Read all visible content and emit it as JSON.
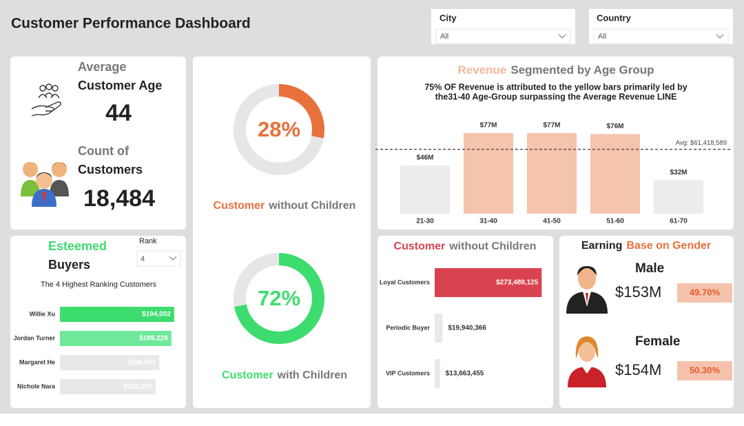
{
  "header": {
    "title": "Customer Performance Dashboard"
  },
  "filters": [
    {
      "label": "City",
      "value": "All"
    },
    {
      "label": "Country",
      "value": "All"
    }
  ],
  "kpis": {
    "age_label": [
      "Average",
      "Customer Age"
    ],
    "age": 44,
    "count_label": [
      "Count of",
      "Customers"
    ],
    "count": "18,484"
  },
  "chart_data": [
    {
      "type": "donut",
      "title_parts": [
        {
          "text": "Customer",
          "color": "#e8703a"
        },
        {
          "text": "without Children",
          "color": "#777777"
        }
      ],
      "values": [
        28
      ],
      "value_labels": [
        "28%"
      ],
      "color": "#e8703a"
    },
    {
      "type": "donut",
      "title_parts": [
        {
          "text": "Customer",
          "color": "#3ddc6e"
        },
        {
          "text": "with Children",
          "color": "#777777"
        }
      ],
      "values": [
        72
      ],
      "value_labels": [
        "72%"
      ],
      "color": "#3ddc6e"
    },
    {
      "type": "bar",
      "title_parts": [
        {
          "text": "Revenue",
          "color": "#f4b89a"
        },
        {
          "text": "Segmented by Age Group",
          "color": "#777777"
        }
      ],
      "subtitle": [
        "75% OF Revenue is attributed to the yellow bars primarily led by",
        "the31-40 Age-Group surpassing the Average Revenue LINE"
      ],
      "categories": [
        "21-30",
        "31-40",
        "41-50",
        "51-60",
        "61-70"
      ],
      "values": [
        46000000,
        77000000,
        77000000,
        76000000,
        32000000
      ],
      "value_labels": [
        "$46M",
        "$77M",
        "$77M",
        "$76M",
        "$32M"
      ],
      "colors": [
        "#ececec",
        "#f5c4ad",
        "#f5c4ad",
        "#f5c4ad",
        "#ececec"
      ],
      "ylim": [
        0,
        100000000
      ],
      "average": {
        "value": 61418589,
        "label": "Avg: $61,418,589"
      }
    },
    {
      "type": "hbar",
      "title_parts": [
        {
          "text": "Esteemed",
          "color": "#3ddc6e"
        },
        {
          "text": "Buyers",
          "color": "#222222"
        }
      ],
      "rank_slicer": {
        "label": "Rank",
        "value": 4
      },
      "subtitle": [
        "The 4 Highest Ranking Customers"
      ],
      "categories": [
        "Willie Xu",
        "Jordan Turner",
        "Margaret He",
        "Nichole Nara"
      ],
      "values": [
        194002,
        189228,
        168633,
        162692
      ],
      "value_labels": [
        "$194,002",
        "$189,228",
        "$168,633",
        "$162,692"
      ],
      "colors": [
        "#3ddc6e",
        "#6fe89a",
        "#e8e8e8",
        "#e8e8e8"
      ],
      "xlim": [
        0,
        200000
      ]
    },
    {
      "type": "hbar",
      "title_parts": [
        {
          "text": "Customer",
          "color": "#d9434f"
        },
        {
          "text": "without Children",
          "color": "#777777"
        }
      ],
      "categories": [
        "Loyal Customers",
        "Periodic Buyer",
        "VIP Customers"
      ],
      "values": [
        273489125,
        19940366,
        13663455
      ],
      "value_labels": [
        "$273,489,125",
        "$19,940,366",
        "$13,663,455"
      ],
      "colors": [
        "#d9434f",
        "#e8e8e8",
        "#e8e8e8"
      ],
      "xlim": [
        0,
        280000000
      ]
    }
  ],
  "gender": {
    "title_parts": [
      {
        "text": "Earning",
        "color": "#222222"
      },
      {
        "text": "Base on Gender",
        "color": "#e8703a"
      }
    ],
    "rows": [
      {
        "label": "Male",
        "amount": "$153M",
        "share": "49.70%"
      },
      {
        "label": "Female",
        "amount": "$154M",
        "share": "50.30%"
      }
    ]
  }
}
